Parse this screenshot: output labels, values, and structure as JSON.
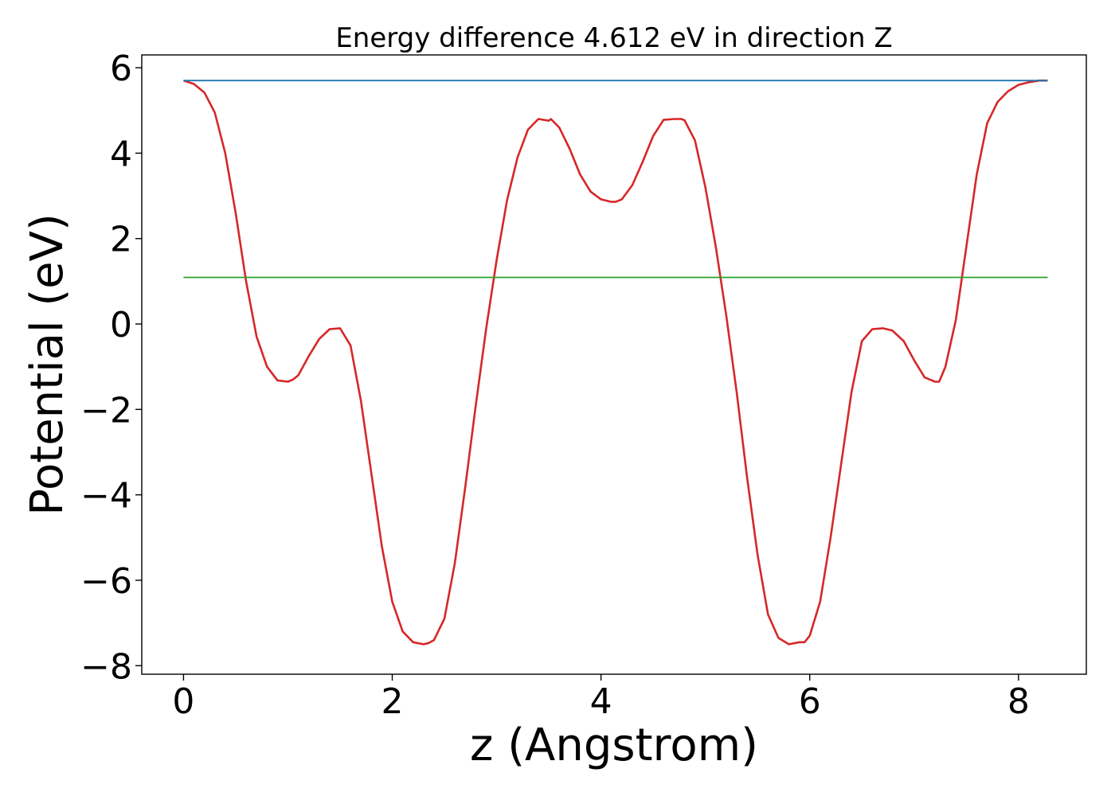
{
  "chart_data": {
    "type": "line",
    "title": "Energy difference 4.612 eV in direction Z",
    "xlabel": "z (Angstrom)",
    "ylabel": "Potential (eV)",
    "xlim": [
      -0.4,
      8.65
    ],
    "ylim": [
      -8.2,
      6.3
    ],
    "xticks": [
      0,
      2,
      4,
      6,
      8
    ],
    "xtick_labels": [
      "0",
      "2",
      "4",
      "6",
      "8"
    ],
    "yticks": [
      -8,
      -6,
      -4,
      -2,
      0,
      2,
      4,
      6
    ],
    "ytick_labels": [
      "−8",
      "−6",
      "−4",
      "−2",
      "0",
      "2",
      "4",
      "6"
    ],
    "grid": false,
    "series": [
      {
        "color": "#d62728",
        "x": [
          0,
          0.1,
          0.2,
          0.3,
          0.4,
          0.5,
          0.6,
          0.7,
          0.8,
          0.9,
          1.0,
          1.05,
          1.1,
          1.2,
          1.3,
          1.4,
          1.5,
          1.6,
          1.7,
          1.8,
          1.9,
          2.0,
          2.1,
          2.2,
          2.3,
          2.35,
          2.4,
          2.5,
          2.6,
          2.7,
          2.8,
          2.9,
          3.0,
          3.1,
          3.2,
          3.3,
          3.4,
          3.5,
          3.52,
          3.6,
          3.7,
          3.8,
          3.9,
          4.0,
          4.1,
          4.14,
          4.2,
          4.3,
          4.4,
          4.5,
          4.6,
          4.7,
          4.77,
          4.8,
          4.9,
          5.0,
          5.1,
          5.2,
          5.3,
          5.4,
          5.5,
          5.6,
          5.7,
          5.8,
          5.9,
          5.95,
          6.0,
          6.1,
          6.2,
          6.3,
          6.4,
          6.5,
          6.6,
          6.7,
          6.79,
          6.9,
          7.0,
          7.1,
          7.2,
          7.24,
          7.3,
          7.4,
          7.5,
          7.6,
          7.7,
          7.8,
          7.9,
          8.0,
          8.1,
          8.2,
          8.28
        ],
        "y": [
          5.7,
          5.62,
          5.42,
          4.95,
          4.0,
          2.6,
          1.0,
          -0.3,
          -1.0,
          -1.32,
          -1.35,
          -1.3,
          -1.2,
          -0.75,
          -0.35,
          -0.12,
          -0.1,
          -0.5,
          -1.8,
          -3.5,
          -5.2,
          -6.5,
          -7.2,
          -7.45,
          -7.5,
          -7.47,
          -7.4,
          -6.9,
          -5.6,
          -3.8,
          -1.9,
          -0.1,
          1.5,
          2.9,
          3.9,
          4.55,
          4.8,
          4.76,
          4.8,
          4.6,
          4.1,
          3.5,
          3.1,
          2.92,
          2.86,
          2.86,
          2.92,
          3.25,
          3.8,
          4.4,
          4.78,
          4.8,
          4.8,
          4.77,
          4.3,
          3.2,
          1.8,
          0.2,
          -1.6,
          -3.6,
          -5.4,
          -6.8,
          -7.35,
          -7.5,
          -7.45,
          -7.45,
          -7.3,
          -6.5,
          -5.0,
          -3.3,
          -1.6,
          -0.4,
          -0.12,
          -0.1,
          -0.15,
          -0.4,
          -0.85,
          -1.25,
          -1.35,
          -1.35,
          -1.0,
          0.1,
          1.8,
          3.5,
          4.7,
          5.2,
          5.45,
          5.6,
          5.66,
          5.7,
          5.7
        ]
      },
      {
        "color": "#1f77b4",
        "x": [
          0,
          8.28
        ],
        "y": [
          5.7,
          5.7
        ]
      },
      {
        "color": "#2ca02c",
        "x": [
          0,
          8.28
        ],
        "y": [
          1.09,
          1.09
        ]
      }
    ]
  }
}
